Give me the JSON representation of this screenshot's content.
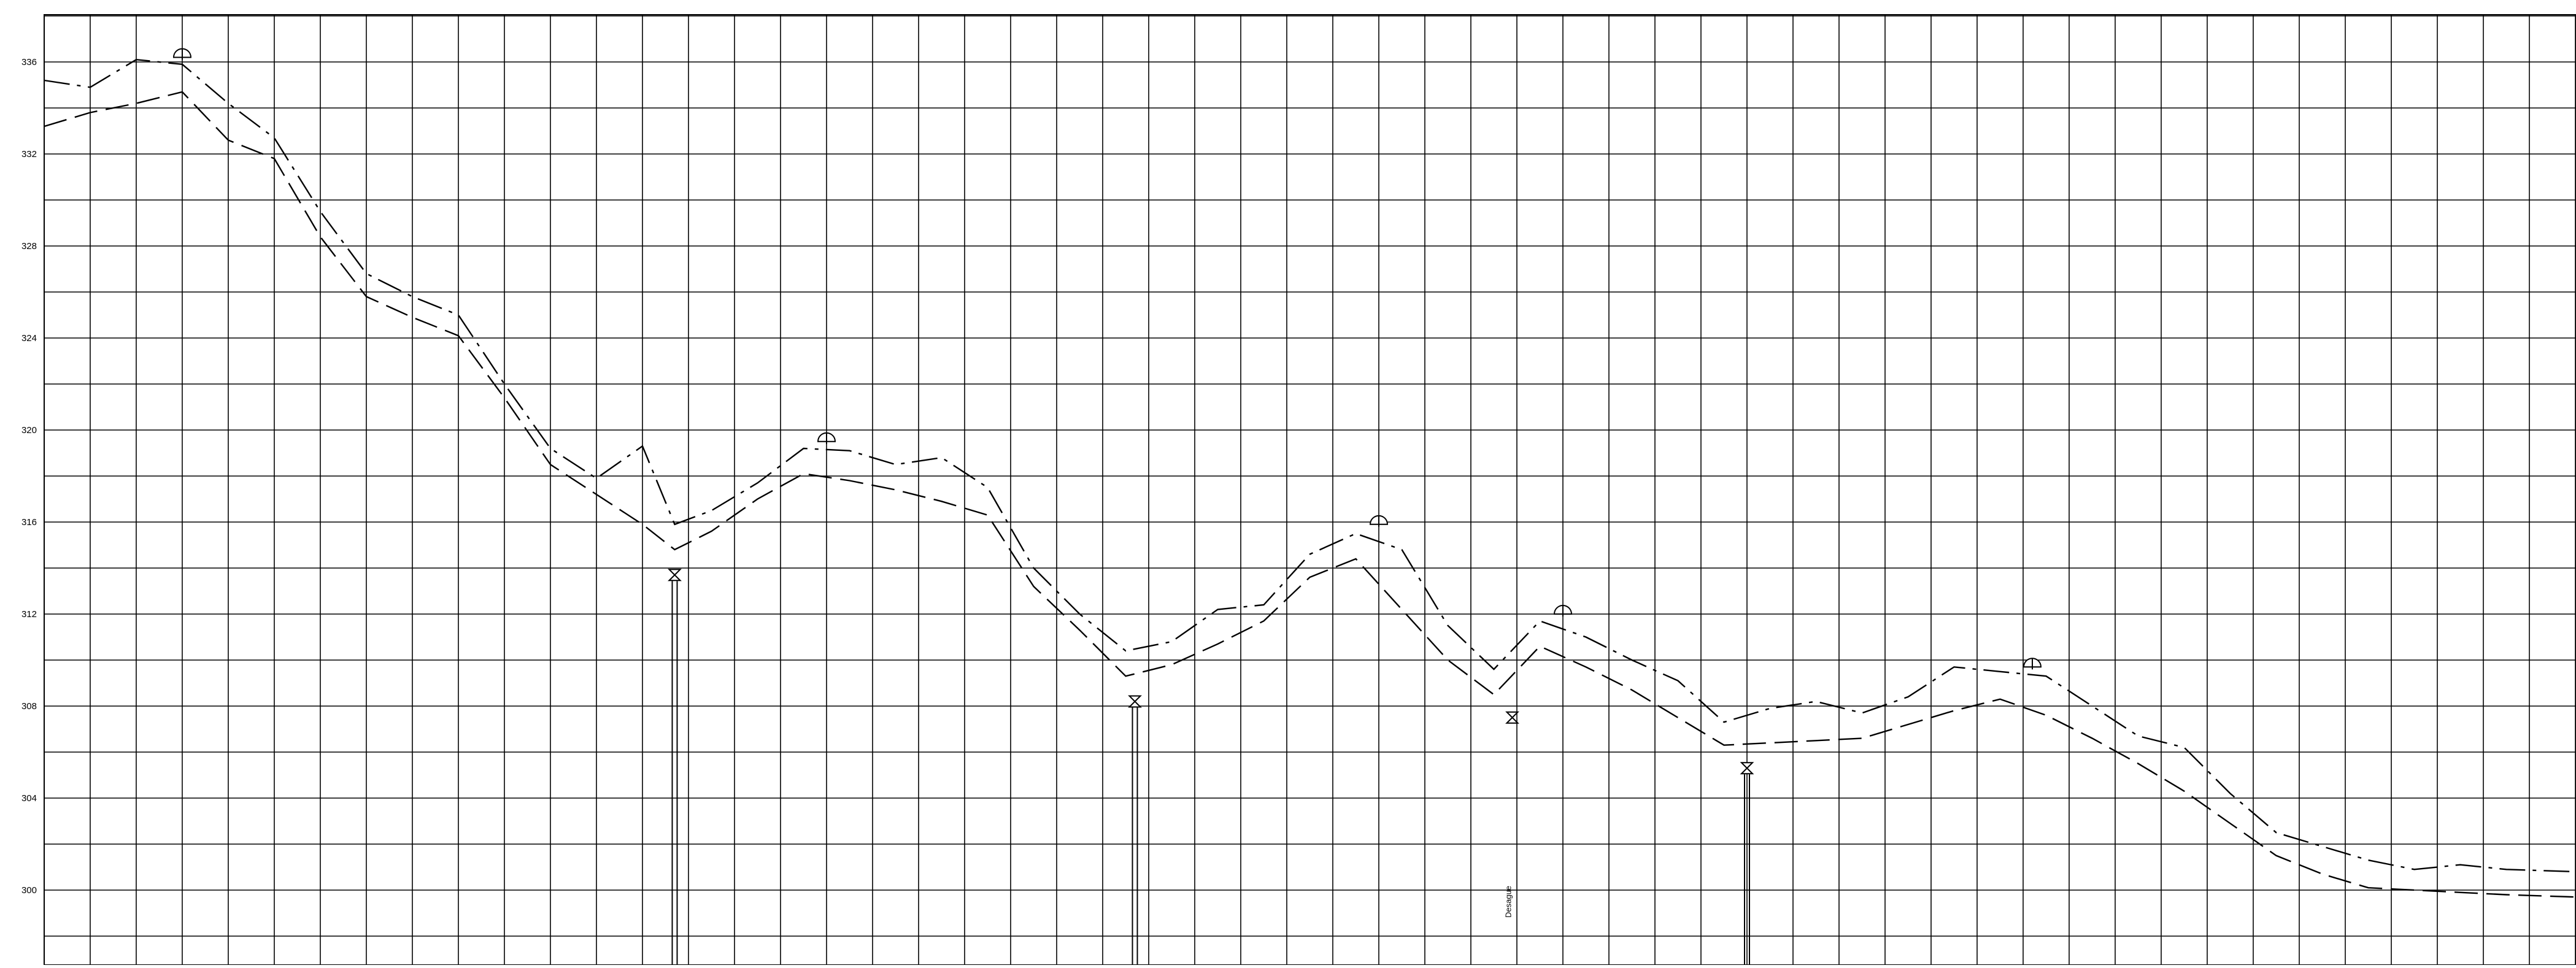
{
  "chart_data": {
    "type": "line",
    "title": "",
    "xlabel": "",
    "ylabel": "",
    "ylim": [
      298,
      338
    ],
    "xlim": [
      0,
      55
    ],
    "y_ticks": [
      300,
      304,
      308,
      312,
      316,
      320,
      324,
      328,
      332,
      336
    ],
    "grid": "on",
    "legend": "none",
    "series": [
      {
        "style": "dash-dot",
        "x": [
          0,
          1,
          2,
          3,
          4,
          5,
          6,
          7,
          8,
          9,
          10,
          11,
          12,
          13,
          13.7,
          14.5,
          15.5,
          16.5,
          17.5,
          18.5,
          19.5,
          20.5,
          21.5,
          22.5,
          23.5,
          24.5,
          25.5,
          26.5,
          27.5,
          28.5,
          29.5,
          30.5,
          31.5,
          32.5,
          33.5,
          34.5,
          35.5,
          36.5,
          37.5,
          38.5,
          39.5,
          40.5,
          41.5,
          42.5,
          43.5,
          44.5,
          45.5,
          46.5,
          47.5,
          48.5,
          49.5,
          50.5,
          51.5,
          52.5,
          53.5,
          55
        ],
        "y": [
          335.2,
          334.9,
          336.1,
          335.9,
          334.2,
          332.7,
          329.5,
          326.8,
          325.8,
          325.0,
          322.0,
          319.2,
          317.9,
          319.3,
          315.9,
          316.5,
          317.7,
          319.2,
          319.1,
          318.5,
          318.8,
          317.5,
          314.0,
          312.0,
          310.4,
          310.8,
          312.2,
          312.4,
          314.6,
          315.5,
          314.8,
          311.5,
          309.6,
          311.7,
          311.0,
          310.0,
          309.1,
          307.3,
          307.9,
          308.2,
          307.7,
          308.4,
          309.7,
          309.5,
          309.3,
          308.0,
          306.7,
          306.2,
          304.2,
          302.5,
          301.9,
          301.3,
          300.9,
          301.1,
          300.9,
          300.8
        ]
      },
      {
        "style": "dashed",
        "x": [
          0,
          1,
          2,
          3,
          4,
          5,
          6,
          7,
          8,
          9,
          10,
          11,
          12,
          13,
          13.7,
          14.5,
          15.5,
          16.5,
          17.5,
          18.5,
          19.5,
          20.5,
          21.5,
          22.5,
          23.5,
          24.5,
          25.5,
          26.5,
          27.5,
          28.5,
          29.5,
          30.5,
          31.5,
          32.5,
          33.5,
          34.5,
          35.5,
          36.5,
          37.5,
          38.5,
          39.5,
          40.5,
          41.5,
          42.5,
          43.5,
          44.5,
          45.5,
          46.5,
          47.5,
          48.5,
          49.5,
          50.5,
          51.5,
          52.5,
          53.5,
          55
        ],
        "y": [
          333.2,
          333.8,
          334.2,
          334.7,
          332.6,
          331.8,
          328.4,
          325.8,
          324.9,
          324.1,
          321.4,
          318.5,
          317.2,
          315.9,
          314.8,
          315.6,
          317.0,
          318.1,
          317.8,
          317.4,
          316.9,
          316.3,
          313.2,
          311.3,
          309.3,
          309.8,
          310.7,
          311.7,
          313.6,
          314.4,
          312.2,
          310.0,
          308.5,
          310.6,
          309.7,
          308.7,
          307.5,
          306.3,
          306.4,
          306.5,
          306.6,
          307.2,
          307.8,
          308.3,
          307.6,
          306.6,
          305.5,
          304.3,
          302.9,
          301.5,
          300.7,
          300.1,
          300.0,
          299.9,
          299.8,
          299.7
        ]
      }
    ],
    "markers": [
      {
        "type": "air-valve",
        "x": 3,
        "y": 336.2
      },
      {
        "type": "air-valve",
        "x": 17,
        "y": 319.5
      },
      {
        "type": "air-valve",
        "x": 29,
        "y": 315.9
      },
      {
        "type": "air-valve",
        "x": 33,
        "y": 312.0
      },
      {
        "type": "air-valve",
        "x": 43.2,
        "y": 309.7
      },
      {
        "type": "drain-valve",
        "x": 13.7,
        "y": 313.7,
        "has_branch": true
      },
      {
        "type": "drain-valve",
        "x": 23.7,
        "y": 308.2,
        "has_branch": true
      },
      {
        "type": "drain-valve",
        "x": 31.9,
        "y": 307.5,
        "has_branch": false
      },
      {
        "type": "drain-valve",
        "x": 37,
        "y": 305.3,
        "has_branch": true
      }
    ],
    "annotations": [
      {
        "text": "Desague",
        "x": 31.9,
        "y": 298.8,
        "rotation": -90
      }
    ]
  }
}
